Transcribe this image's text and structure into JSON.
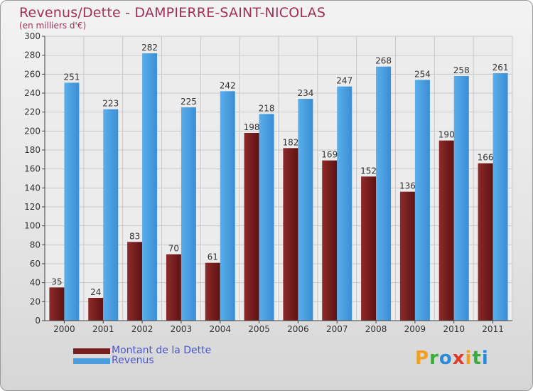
{
  "title": "Revenus/Dette - DAMPIERRE-SAINT-NICOLAS",
  "subtitle": "(en milliers d'€)",
  "logo": {
    "text": "Proxiti",
    "letters": [
      {
        "ch": "P",
        "color": "#f2a020"
      },
      {
        "ch": "r",
        "color": "#3aaa3a"
      },
      {
        "ch": "o",
        "color": "#2a8ad8"
      },
      {
        "ch": "x",
        "color": "#e03a2a"
      },
      {
        "ch": "i",
        "color": "#f2a020"
      },
      {
        "ch": "t",
        "color": "#3aaa3a"
      },
      {
        "ch": "i",
        "color": "#2a8ad8"
      }
    ]
  },
  "colors": {
    "dette": "#7a1f1f",
    "revenus": "#4a9ee0",
    "title": "#a0305a",
    "legend_text": "#4a55c8"
  },
  "chart_data": {
    "type": "bar",
    "categories": [
      "2000",
      "2001",
      "2002",
      "2003",
      "2004",
      "2005",
      "2006",
      "2007",
      "2008",
      "2009",
      "2010",
      "2011"
    ],
    "series": [
      {
        "name": "Montant de la Dette",
        "values": [
          35,
          24,
          83,
          70,
          61,
          198,
          182,
          169,
          152,
          136,
          190,
          166
        ]
      },
      {
        "name": "Revenus",
        "values": [
          251,
          223,
          282,
          225,
          242,
          218,
          234,
          247,
          268,
          254,
          258,
          261
        ]
      }
    ],
    "ylim": [
      0,
      300
    ],
    "yticks": [
      0,
      20,
      40,
      60,
      80,
      100,
      120,
      140,
      160,
      180,
      200,
      220,
      240,
      260,
      280,
      300
    ],
    "grid": true,
    "legend_position": "bottom-left"
  }
}
